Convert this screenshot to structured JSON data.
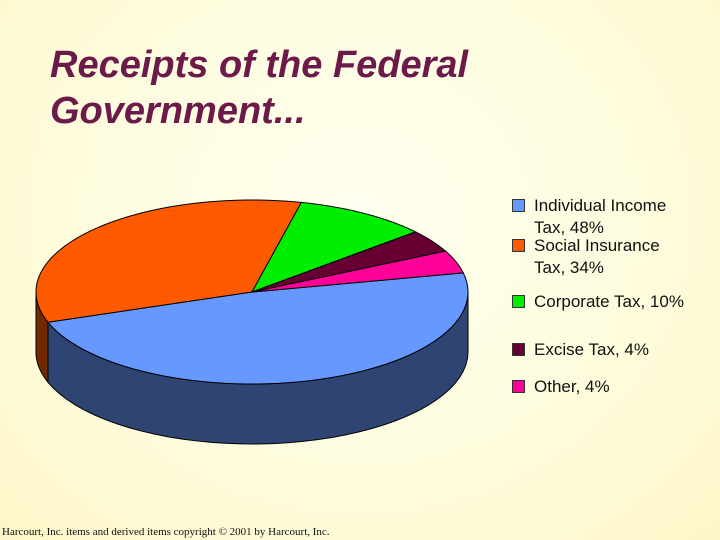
{
  "chart_data": {
    "type": "pie",
    "title": "Receipts of the Federal Government...",
    "categories": [
      "Individual Income Tax,  48%",
      "Social Insurance Tax, 34%",
      "Corporate Tax, 10%",
      "Excise Tax, 4%",
      "Other, 4%"
    ],
    "values": [
      48,
      34,
      10,
      4,
      4
    ],
    "colors": [
      "#6699ff",
      "#ff5a00",
      "#00ee00",
      "#660033",
      "#ff0099"
    ],
    "legend": "right",
    "footnote": "Harcourt, Inc. items and derived items copyright © 2001 by Harcourt, Inc."
  }
}
